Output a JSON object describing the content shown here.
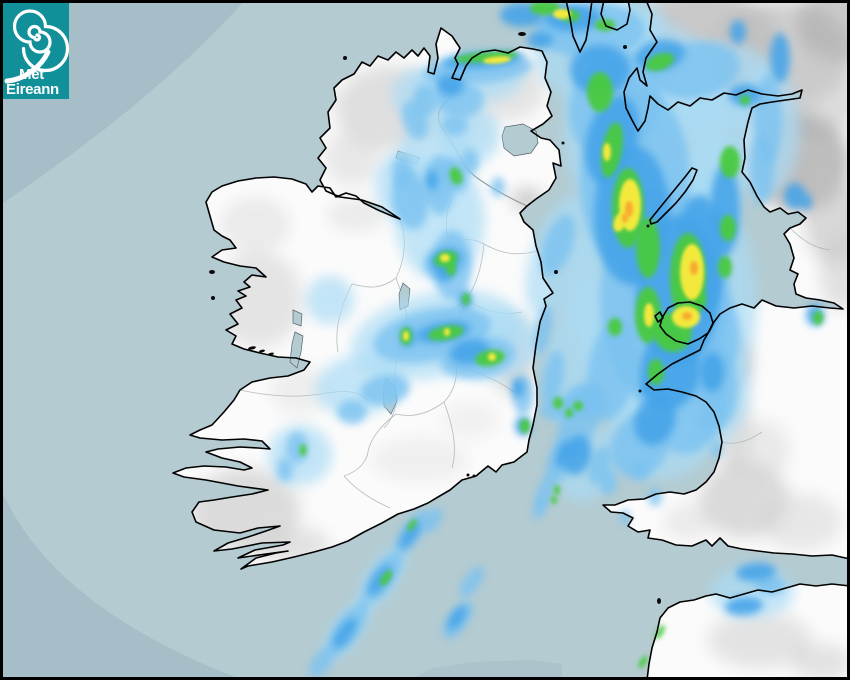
{
  "logo": {
    "line1": "Met",
    "line2": "Éireann",
    "background": "#12909a",
    "text_color": "#ffffff",
    "icon": "cyclone-spiral-icon"
  },
  "map": {
    "kind": "weather-radar-composite",
    "region_shown": "Ireland and western Britain"
  },
  "colors": {
    "sea_in_range": "#b4cbd1",
    "sea_out_of_range": "#a5bec7",
    "land": "#fbfbfb",
    "coastline": "#000000",
    "county_border": "#a8b0b0",
    "ni_border": "#8f9494",
    "lake": "#b4cbd1",
    "frame": "#000000"
  },
  "precipitation": {
    "levels": [
      {
        "name": "very-light",
        "color": "#a9dcf5"
      },
      {
        "name": "light",
        "color": "#7bc2f0"
      },
      {
        "name": "moderate",
        "color": "#46a3e8"
      },
      {
        "name": "heavy",
        "color": "#48c93e"
      },
      {
        "name": "very-heavy",
        "color": "#f3e93c"
      },
      {
        "name": "intense",
        "color": "#f8a92e"
      }
    ],
    "cells": [
      [
        0,
        648,
        130,
        85,
        110,
        0
      ],
      [
        0,
        665,
        300,
        92,
        140,
        0
      ],
      [
        0,
        600,
        55,
        65,
        50,
        0
      ],
      [
        0,
        700,
        90,
        75,
        45,
        -15
      ],
      [
        0,
        765,
        130,
        35,
        65,
        0
      ],
      [
        0,
        715,
        180,
        30,
        50,
        0
      ],
      [
        0,
        660,
        430,
        55,
        50,
        0
      ],
      [
        0,
        700,
        390,
        50,
        60,
        0
      ],
      [
        0,
        560,
        255,
        28,
        65,
        20
      ],
      [
        0,
        575,
        350,
        28,
        75,
        10
      ],
      [
        0,
        625,
        20,
        40,
        22,
        0
      ],
      [
        0,
        470,
        80,
        55,
        25,
        -5
      ],
      [
        0,
        435,
        155,
        35,
        45,
        0
      ],
      [
        0,
        440,
        220,
        45,
        60,
        0
      ],
      [
        0,
        435,
        335,
        85,
        42,
        -12
      ],
      [
        0,
        360,
        385,
        45,
        30,
        -10
      ],
      [
        0,
        495,
        345,
        45,
        35,
        -10
      ],
      [
        0,
        420,
        95,
        28,
        26,
        0
      ],
      [
        0,
        470,
        135,
        30,
        30,
        0
      ],
      [
        0,
        300,
        455,
        32,
        30,
        0
      ],
      [
        0,
        330,
        300,
        24,
        24,
        0
      ],
      [
        0,
        585,
        465,
        30,
        38,
        15
      ],
      [
        0,
        752,
        592,
        42,
        26,
        0
      ],
      [
        0,
        383,
        577,
        16,
        38,
        35
      ],
      [
        0,
        347,
        630,
        15,
        36,
        35
      ],
      [
        0,
        405,
        185,
        30,
        35,
        0
      ],
      [
        1,
        635,
        180,
        55,
        95,
        0
      ],
      [
        1,
        665,
        300,
        65,
        110,
        0
      ],
      [
        1,
        615,
        105,
        45,
        55,
        20
      ],
      [
        1,
        590,
        30,
        55,
        28,
        0
      ],
      [
        1,
        695,
        70,
        45,
        28,
        -10
      ],
      [
        1,
        768,
        120,
        14,
        45,
        0
      ],
      [
        1,
        762,
        170,
        12,
        35,
        0
      ],
      [
        1,
        700,
        335,
        40,
        55,
        0
      ],
      [
        1,
        690,
        410,
        35,
        45,
        20
      ],
      [
        1,
        640,
        445,
        28,
        34,
        30
      ],
      [
        1,
        612,
        370,
        24,
        52,
        10
      ],
      [
        1,
        580,
        420,
        18,
        38,
        25
      ],
      [
        1,
        478,
        70,
        55,
        14,
        -5
      ],
      [
        1,
        460,
        100,
        24,
        18,
        0
      ],
      [
        1,
        440,
        185,
        15,
        30,
        0
      ],
      [
        1,
        452,
        265,
        20,
        35,
        0
      ],
      [
        1,
        432,
        335,
        60,
        26,
        -12
      ],
      [
        1,
        478,
        358,
        38,
        20,
        -10
      ],
      [
        1,
        385,
        390,
        25,
        15,
        -10
      ],
      [
        1,
        352,
        412,
        15,
        12,
        0
      ],
      [
        1,
        425,
        100,
        12,
        16,
        0
      ],
      [
        1,
        455,
        125,
        13,
        10,
        0
      ],
      [
        1,
        402,
        172,
        10,
        16,
        0
      ],
      [
        1,
        470,
        162,
        9,
        13,
        0
      ],
      [
        1,
        498,
        187,
        7,
        10,
        0
      ],
      [
        1,
        523,
        395,
        10,
        20,
        0
      ],
      [
        1,
        543,
        330,
        8,
        25,
        10
      ],
      [
        1,
        553,
        378,
        10,
        28,
        10
      ],
      [
        1,
        558,
        245,
        14,
        32,
        20
      ],
      [
        1,
        297,
        448,
        11,
        16,
        0
      ],
      [
        1,
        285,
        470,
        8,
        12,
        0
      ],
      [
        1,
        412,
        532,
        10,
        26,
        35
      ],
      [
        1,
        383,
        577,
        12,
        30,
        35
      ],
      [
        1,
        347,
        630,
        12,
        30,
        35
      ],
      [
        1,
        322,
        662,
        9,
        18,
        35
      ],
      [
        1,
        432,
        520,
        8,
        14,
        35
      ],
      [
        1,
        608,
        482,
        9,
        13,
        0
      ],
      [
        1,
        640,
        470,
        9,
        11,
        0
      ],
      [
        1,
        655,
        497,
        7,
        9,
        0
      ],
      [
        1,
        625,
        517,
        5,
        7,
        0
      ],
      [
        1,
        770,
        585,
        15,
        10,
        0
      ],
      [
        1,
        706,
        422,
        7,
        11,
        0
      ],
      [
        1,
        717,
        450,
        5,
        8,
        0
      ],
      [
        1,
        718,
        390,
        20,
        38,
        0
      ],
      [
        1,
        565,
        22,
        25,
        14,
        0
      ],
      [
        1,
        565,
        408,
        25,
        12,
        -10
      ],
      [
        1,
        585,
        400,
        20,
        16,
        0
      ],
      [
        1,
        560,
        460,
        12,
        25,
        20
      ],
      [
        1,
        545,
        492,
        8,
        18,
        20
      ],
      [
        1,
        600,
        465,
        10,
        20,
        20
      ],
      [
        1,
        540,
        508,
        6,
        12,
        20
      ],
      [
        1,
        458,
        620,
        10,
        22,
        35
      ],
      [
        1,
        472,
        582,
        8,
        18,
        35
      ],
      [
        1,
        364,
        604,
        5,
        6,
        0
      ],
      [
        1,
        455,
        175,
        12,
        18,
        -20
      ],
      [
        1,
        415,
        120,
        12,
        20,
        -20
      ],
      [
        1,
        410,
        200,
        18,
        30,
        -10
      ],
      [
        1,
        445,
        262,
        22,
        16,
        -15
      ],
      [
        2,
        632,
        215,
        38,
        70,
        0
      ],
      [
        2,
        678,
        290,
        42,
        75,
        0
      ],
      [
        2,
        612,
        140,
        25,
        45,
        15
      ],
      [
        2,
        600,
        70,
        30,
        25,
        0
      ],
      [
        2,
        660,
        55,
        25,
        15,
        -10
      ],
      [
        2,
        573,
        18,
        28,
        13,
        0
      ],
      [
        2,
        522,
        15,
        22,
        12,
        0
      ],
      [
        2,
        700,
        255,
        25,
        60,
        0
      ],
      [
        2,
        725,
        210,
        15,
        45,
        0
      ],
      [
        2,
        670,
        370,
        30,
        40,
        10
      ],
      [
        2,
        655,
        420,
        20,
        26,
        20
      ],
      [
        2,
        795,
        196,
        11,
        13,
        0
      ],
      [
        2,
        806,
        202,
        6,
        8,
        0
      ],
      [
        2,
        780,
        58,
        10,
        25,
        0
      ],
      [
        2,
        745,
        95,
        16,
        11,
        0
      ],
      [
        2,
        483,
        60,
        42,
        8,
        -5
      ],
      [
        2,
        450,
        85,
        14,
        11,
        0
      ],
      [
        2,
        443,
        332,
        28,
        10,
        -10
      ],
      [
        2,
        470,
        352,
        20,
        12,
        -10
      ],
      [
        2,
        445,
        270,
        9,
        12,
        0
      ],
      [
        2,
        465,
        300,
        7,
        9,
        0
      ],
      [
        2,
        408,
        337,
        7,
        10,
        0
      ],
      [
        2,
        432,
        180,
        6,
        10,
        0
      ],
      [
        2,
        518,
        388,
        6,
        10,
        0
      ],
      [
        2,
        410,
        535,
        6,
        16,
        35
      ],
      [
        2,
        380,
        580,
        7,
        18,
        35
      ],
      [
        2,
        345,
        633,
        7,
        18,
        35
      ],
      [
        2,
        577,
        455,
        14,
        20,
        15
      ],
      [
        2,
        756,
        572,
        20,
        9,
        -5
      ],
      [
        2,
        744,
        606,
        19,
        9,
        -5
      ],
      [
        2,
        712,
        372,
        12,
        20,
        0
      ],
      [
        2,
        650,
        388,
        9,
        7,
        0
      ],
      [
        2,
        738,
        32,
        8,
        12,
        0
      ],
      [
        2,
        815,
        315,
        9,
        11,
        0
      ],
      [
        2,
        540,
        40,
        13,
        8,
        0
      ],
      [
        2,
        523,
        426,
        8,
        10,
        0
      ],
      [
        2,
        563,
        455,
        6,
        14,
        20
      ],
      [
        2,
        457,
        618,
        6,
        14,
        35
      ],
      [
        2,
        446,
        260,
        16,
        11,
        -15
      ],
      [
        3,
        628,
        208,
        16,
        40,
        0
      ],
      [
        3,
        688,
        278,
        18,
        45,
        0
      ],
      [
        3,
        648,
        315,
        13,
        28,
        0
      ],
      [
        3,
        612,
        150,
        10,
        28,
        10
      ],
      [
        3,
        600,
        92,
        13,
        20,
        0
      ],
      [
        3,
        648,
        248,
        12,
        30,
        0
      ],
      [
        3,
        673,
        332,
        19,
        20,
        0
      ],
      [
        3,
        730,
        162,
        10,
        16,
        0
      ],
      [
        3,
        728,
        228,
        8,
        13,
        0
      ],
      [
        3,
        725,
        267,
        7,
        11,
        0
      ],
      [
        3,
        660,
        62,
        15,
        8,
        -20
      ],
      [
        3,
        545,
        8,
        15,
        7,
        0
      ],
      [
        3,
        570,
        16,
        10,
        6,
        0
      ],
      [
        3,
        605,
        25,
        10,
        6,
        0
      ],
      [
        3,
        615,
        327,
        7,
        9,
        0
      ],
      [
        3,
        656,
        372,
        8,
        13,
        0
      ],
      [
        3,
        745,
        100,
        5,
        5,
        0
      ],
      [
        3,
        700,
        300,
        6,
        9,
        0
      ],
      [
        3,
        486,
        57,
        32,
        5,
        -5
      ],
      [
        3,
        446,
        333,
        18,
        7,
        -10
      ],
      [
        3,
        490,
        358,
        15,
        8,
        -10
      ],
      [
        3,
        406,
        336,
        6,
        9,
        0
      ],
      [
        3,
        451,
        268,
        5,
        8,
        0
      ],
      [
        3,
        466,
        299,
        4,
        6,
        0
      ],
      [
        3,
        303,
        450,
        3.5,
        6,
        0
      ],
      [
        3,
        558,
        403,
        5,
        6,
        0
      ],
      [
        3,
        578,
        406,
        5,
        5,
        0
      ],
      [
        3,
        569,
        413,
        4,
        5,
        0
      ],
      [
        3,
        557,
        490,
        3,
        5,
        0
      ],
      [
        3,
        554,
        500,
        3,
        4,
        0
      ],
      [
        3,
        525,
        426,
        5,
        7,
        0
      ],
      [
        3,
        386,
        578,
        4,
        9,
        35
      ],
      [
        3,
        456,
        176,
        6,
        9,
        -20
      ],
      [
        3,
        446,
        259,
        12,
        8,
        -15
      ],
      [
        3,
        660,
        632,
        3,
        8,
        30
      ],
      [
        3,
        643,
        662,
        3,
        7,
        30
      ],
      [
        3,
        412,
        525,
        3,
        7,
        35
      ],
      [
        3,
        818,
        318,
        5,
        7,
        0
      ],
      [
        4,
        630,
        205,
        11,
        26,
        0
      ],
      [
        4,
        692,
        272,
        12,
        28,
        0
      ],
      [
        4,
        686,
        317,
        14,
        11,
        0
      ],
      [
        4,
        649,
        315,
        5,
        12,
        0
      ],
      [
        4,
        562,
        14,
        9,
        5,
        0
      ],
      [
        4,
        607,
        152,
        4,
        9,
        0
      ],
      [
        4,
        497,
        60,
        14,
        3.5,
        -5
      ],
      [
        4,
        406,
        336,
        3,
        5,
        0
      ],
      [
        4,
        447,
        332,
        3,
        4,
        0
      ],
      [
        4,
        492,
        357,
        4,
        4,
        0
      ],
      [
        4,
        620,
        222,
        6,
        10,
        20
      ],
      [
        4,
        445,
        258,
        5,
        4,
        0
      ],
      [
        5,
        629,
        209,
        4,
        8,
        0
      ],
      [
        5,
        694,
        268,
        4,
        7,
        0
      ],
      [
        5,
        687,
        316,
        5,
        4,
        0
      ],
      [
        5,
        625,
        218,
        3,
        5,
        0
      ]
    ]
  }
}
